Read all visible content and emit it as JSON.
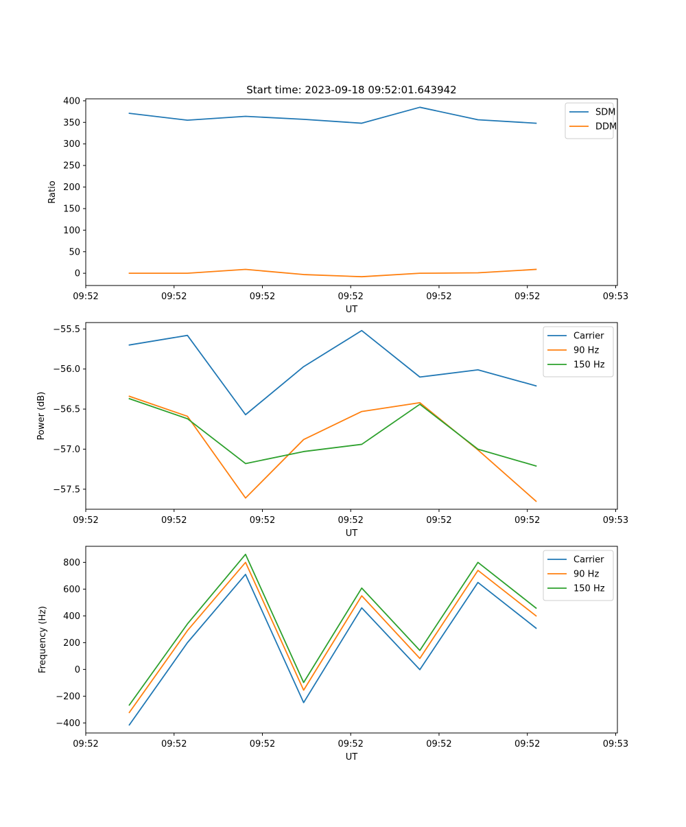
{
  "figure_title": "Start time: 2023-09-18 09:52:01.643942",
  "chart_data": [
    {
      "type": "line",
      "title": "Start time: 2023-09-18 09:52:01.643942",
      "xlabel": "UT",
      "ylabel": "Ratio",
      "x": [
        0,
        1,
        2,
        3,
        4,
        5,
        6,
        7
      ],
      "xlim": [
        -0.75,
        8.4
      ],
      "xticks": [
        -0.75,
        0.77,
        2.29,
        3.81,
        5.33,
        6.85,
        8.37
      ],
      "xtick_labels": [
        "09:52",
        "09:52",
        "09:52",
        "09:52",
        "09:52",
        "09:52",
        "09:53"
      ],
      "ylim": [
        -28.4,
        404.6
      ],
      "yticks": [
        0,
        50,
        100,
        150,
        200,
        250,
        300,
        350,
        400
      ],
      "ytick_labels": [
        "0",
        "50",
        "100",
        "150",
        "200",
        "250",
        "300",
        "350",
        "400"
      ],
      "legend_position": "top-right",
      "series": [
        {
          "name": "SDM",
          "color": "#1f77b4",
          "values": [
            371,
            355,
            364,
            357,
            348,
            385,
            356,
            348
          ]
        },
        {
          "name": "DDM",
          "color": "#ff7f0e",
          "values": [
            0,
            0,
            9,
            -3,
            -8,
            0,
            1,
            9
          ]
        }
      ]
    },
    {
      "type": "line",
      "xlabel": "UT",
      "ylabel": "Power (dB)",
      "x": [
        0,
        1,
        2,
        3,
        4,
        5,
        6,
        7
      ],
      "xlim": [
        -0.75,
        8.4
      ],
      "xticks": [
        -0.75,
        0.77,
        2.29,
        3.81,
        5.33,
        6.85,
        8.37
      ],
      "xtick_labels": [
        "09:52",
        "09:52",
        "09:52",
        "09:52",
        "09:52",
        "09:52",
        "09:53"
      ],
      "ylim": [
        -57.75,
        -55.42
      ],
      "yticks": [
        -57.5,
        -57.0,
        -56.5,
        -56.0,
        -55.5
      ],
      "ytick_labels": [
        "−57.5",
        "−57.0",
        "−56.5",
        "−56.0",
        "−55.5"
      ],
      "legend_position": "top-right",
      "series": [
        {
          "name": "Carrier",
          "color": "#1f77b4",
          "values": [
            -55.7,
            -55.58,
            -56.57,
            -55.97,
            -55.52,
            -56.1,
            -56.01,
            -56.21
          ]
        },
        {
          "name": "90 Hz",
          "color": "#ff7f0e",
          "values": [
            -56.34,
            -56.59,
            -57.61,
            -56.88,
            -56.53,
            -56.42,
            -57.01,
            -57.65
          ]
        },
        {
          "name": "150 Hz",
          "color": "#2ca02c",
          "values": [
            -56.37,
            -56.62,
            -57.18,
            -57.03,
            -56.94,
            -56.44,
            -57.0,
            -57.21
          ]
        }
      ]
    },
    {
      "type": "line",
      "xlabel": "UT",
      "ylabel": "Frequency (Hz)",
      "x": [
        0,
        1,
        2,
        3,
        4,
        5,
        6,
        7
      ],
      "xlim": [
        -0.75,
        8.4
      ],
      "xticks": [
        -0.75,
        0.77,
        2.29,
        3.81,
        5.33,
        6.85,
        8.37
      ],
      "xtick_labels": [
        "09:52",
        "09:52",
        "09:52",
        "09:52",
        "09:52",
        "09:52",
        "09:53"
      ],
      "ylim": [
        -475,
        920
      ],
      "yticks": [
        -400,
        -200,
        0,
        200,
        400,
        600,
        800
      ],
      "ytick_labels": [
        "−400",
        "−200",
        "0",
        "200",
        "400",
        "600",
        "800"
      ],
      "legend_position": "top-right",
      "series": [
        {
          "name": "Carrier",
          "color": "#1f77b4",
          "values": [
            -415,
            200,
            710,
            -248,
            460,
            -2,
            650,
            308
          ]
        },
        {
          "name": "90 Hz",
          "color": "#ff7f0e",
          "values": [
            -322,
            290,
            800,
            -155,
            550,
            82,
            740,
            400
          ]
        },
        {
          "name": "150 Hz",
          "color": "#2ca02c",
          "values": [
            -266,
            340,
            860,
            -98,
            608,
            142,
            800,
            458
          ]
        }
      ]
    }
  ]
}
